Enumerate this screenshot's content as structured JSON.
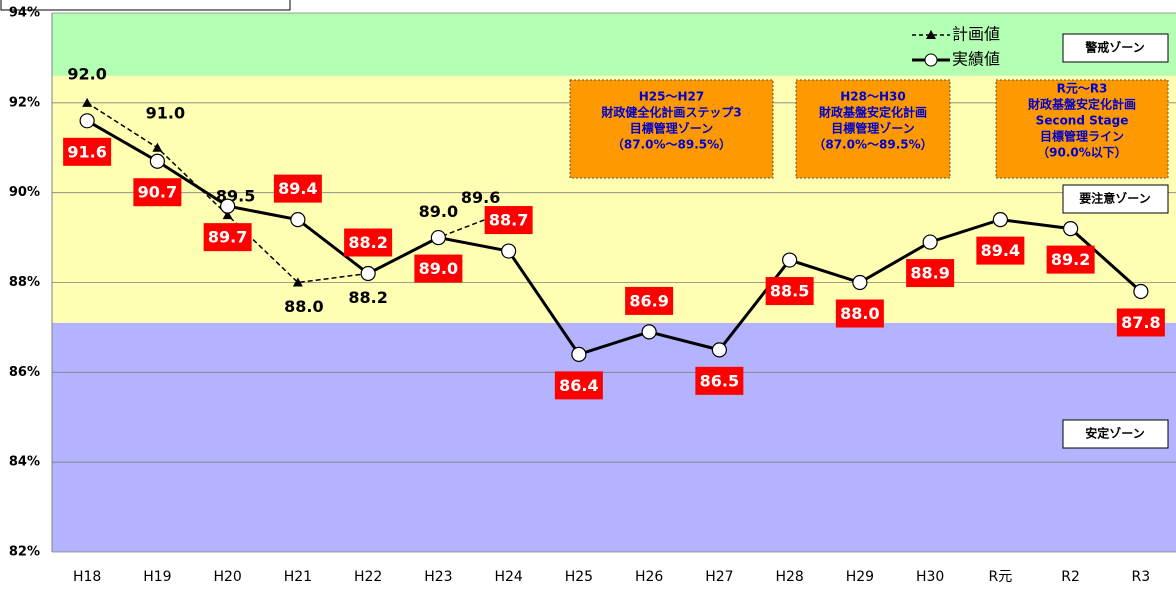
{
  "chart_data": {
    "type": "line",
    "categories": [
      "H18",
      "H19",
      "H20",
      "H21",
      "H22",
      "H23",
      "H24",
      "H25",
      "H26",
      "H27",
      "H28",
      "H29",
      "H30",
      "R元",
      "R2",
      "R3"
    ],
    "series": [
      {
        "name": "計画値",
        "color": "#000000",
        "line_style": "dashed",
        "marker": "triangle",
        "values": [
          92.0,
          91.0,
          89.5,
          88.0,
          88.2,
          89.0,
          89.6,
          null,
          null,
          null,
          null,
          null,
          null,
          null,
          null,
          null
        ],
        "value_labels": [
          "92.0",
          "91.0",
          "89.5",
          "88.0",
          "88.2",
          "89.0",
          "89.6",
          null,
          null,
          null,
          null,
          null,
          null,
          null,
          null,
          null
        ]
      },
      {
        "name": "実績値",
        "color": "#000000",
        "line_style": "solid",
        "marker": "circle",
        "label_color": "#ff0000",
        "values": [
          91.6,
          90.7,
          89.7,
          89.4,
          88.2,
          89.0,
          88.7,
          86.4,
          86.9,
          86.5,
          88.5,
          88.0,
          88.9,
          89.4,
          89.2,
          87.8
        ],
        "value_labels": [
          "91.6",
          "90.7",
          "89.7",
          "89.4",
          "88.2",
          "89.0",
          "88.7",
          "86.4",
          "86.9",
          "86.5",
          "88.5",
          "88.0",
          "88.9",
          "89.4",
          "89.2",
          "87.8"
        ]
      }
    ],
    "ylim": [
      82,
      94
    ],
    "yticks": [
      {
        "value": 82,
        "label": "82%"
      },
      {
        "value": 84,
        "label": "84%"
      },
      {
        "value": 86,
        "label": "86%"
      },
      {
        "value": 88,
        "label": "88%"
      },
      {
        "value": 90,
        "label": "90%"
      },
      {
        "value": 92,
        "label": "92%"
      },
      {
        "value": 94,
        "label": "94%"
      }
    ],
    "grid": true,
    "legend": "top-right",
    "zones": [
      {
        "name": "警戒ゾーン",
        "from": 92.6,
        "to": 94,
        "color": "#b3ffb3"
      },
      {
        "name": "要注意ゾーン",
        "from": 87.1,
        "to": 92.6,
        "color": "#ffffb3"
      },
      {
        "name": "安定ゾーン",
        "from": 82,
        "to": 87.1,
        "color": "#b3b3ff"
      }
    ],
    "annotations": [
      {
        "lines": [
          "H25～H27",
          "財政健全化計画ステップ3",
          "目標管理ゾーン",
          "（87.0%～89.5%）"
        ]
      },
      {
        "lines": [
          "H28～H30",
          "財政基盤安定化計画",
          "目標管理ゾーン",
          "（87.0%～89.5%）"
        ]
      },
      {
        "lines": [
          "R元～R3",
          "財政基盤安定化計画",
          "Second Stage",
          "目標管理ライン",
          "（90.0%以下）"
        ]
      }
    ]
  }
}
